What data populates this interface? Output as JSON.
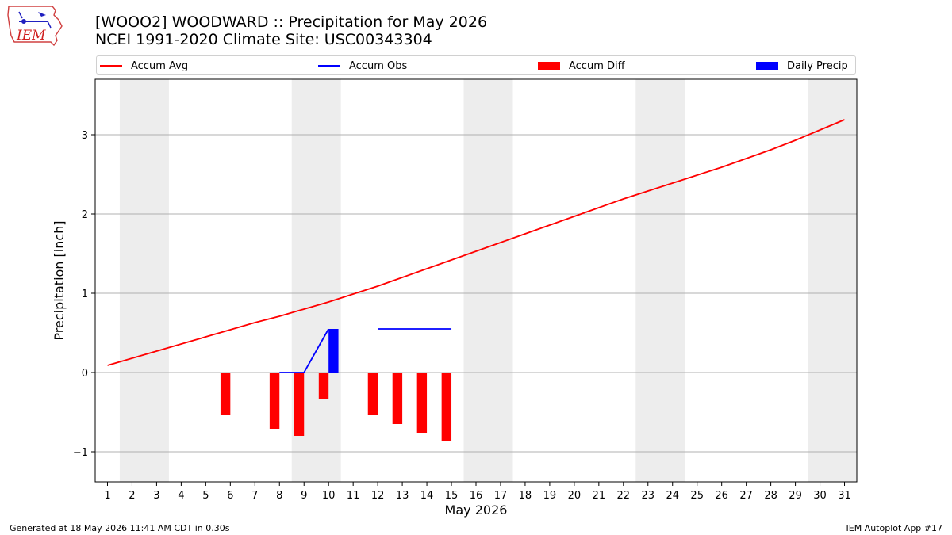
{
  "header": {
    "title_line1": "[WOOO2] WOODWARD :: Precipitation for May 2026",
    "title_line2": "NCEI 1991-2020 Climate Site: USC00343304"
  },
  "logo": {
    "text": "IEM",
    "icon": "iem-iowa-logo"
  },
  "footer": {
    "generated": "Generated at 18 May 2026 11:41 AM CDT in 0.30s",
    "app": "IEM Autoplot App #17"
  },
  "colors": {
    "avg": "#ff0000",
    "obs": "#0000ff",
    "diff": "#ff0000",
    "daily": "#0000ff",
    "weekend": "#ededed",
    "grid": "#b0b0b0"
  },
  "chart_data": {
    "type": "bar",
    "title": "[WOOO2] WOODWARD :: Precipitation for May 2026",
    "subtitle": "NCEI 1991-2020 Climate Site: USC00343304",
    "xlabel": "May 2026",
    "ylabel": "Precipitation [inch]",
    "xlim": [
      0.5,
      31.5
    ],
    "ylim": [
      -1.38,
      3.7
    ],
    "yticks": [
      -1,
      0,
      1,
      2,
      3
    ],
    "ytick_labels": [
      "−1",
      "0",
      "1",
      "2",
      "3"
    ],
    "x": [
      1,
      2,
      3,
      4,
      5,
      6,
      7,
      8,
      9,
      10,
      11,
      12,
      13,
      14,
      15,
      16,
      17,
      18,
      19,
      20,
      21,
      22,
      23,
      24,
      25,
      26,
      27,
      28,
      29,
      30,
      31
    ],
    "weekend_spans": [
      [
        1.5,
        3.5
      ],
      [
        8.5,
        10.5
      ],
      [
        15.5,
        17.5
      ],
      [
        22.5,
        24.5
      ],
      [
        29.5,
        31.5
      ]
    ],
    "grid": "horizontal",
    "legend": {
      "placement": "top",
      "entries": [
        "Accum Avg",
        "Accum Obs",
        "Accum Diff",
        "Daily Precip"
      ]
    },
    "series": [
      {
        "name": "Accum Avg",
        "type": "line",
        "x": [
          1,
          2,
          3,
          4,
          5,
          6,
          7,
          8,
          9,
          10,
          11,
          12,
          13,
          14,
          15,
          16,
          17,
          18,
          19,
          20,
          21,
          22,
          23,
          24,
          25,
          26,
          27,
          28,
          29,
          30,
          31
        ],
        "values": [
          0.09,
          0.18,
          0.27,
          0.36,
          0.45,
          0.54,
          0.63,
          0.71,
          0.8,
          0.89,
          0.99,
          1.09,
          1.2,
          1.31,
          1.42,
          1.53,
          1.64,
          1.75,
          1.86,
          1.97,
          2.08,
          2.19,
          2.29,
          2.39,
          2.49,
          2.59,
          2.7,
          2.81,
          2.93,
          3.06,
          3.19
        ]
      },
      {
        "name": "Accum Obs",
        "type": "line",
        "segments": [
          {
            "x": [
              8,
              9,
              10
            ],
            "values": [
              0.0,
              0.0,
              0.55
            ]
          },
          {
            "x": [
              12,
              13,
              14,
              15
            ],
            "values": [
              0.55,
              0.55,
              0.55,
              0.55
            ]
          }
        ]
      },
      {
        "name": "Accum Diff",
        "type": "bar",
        "x": [
          6,
          8,
          9,
          10,
          12,
          13,
          14,
          15
        ],
        "values": [
          -0.54,
          -0.71,
          -0.8,
          -0.34,
          -0.54,
          -0.65,
          -0.76,
          -0.87
        ]
      },
      {
        "name": "Daily Precip",
        "type": "bar",
        "x": [
          10
        ],
        "values": [
          0.55
        ]
      }
    ]
  }
}
